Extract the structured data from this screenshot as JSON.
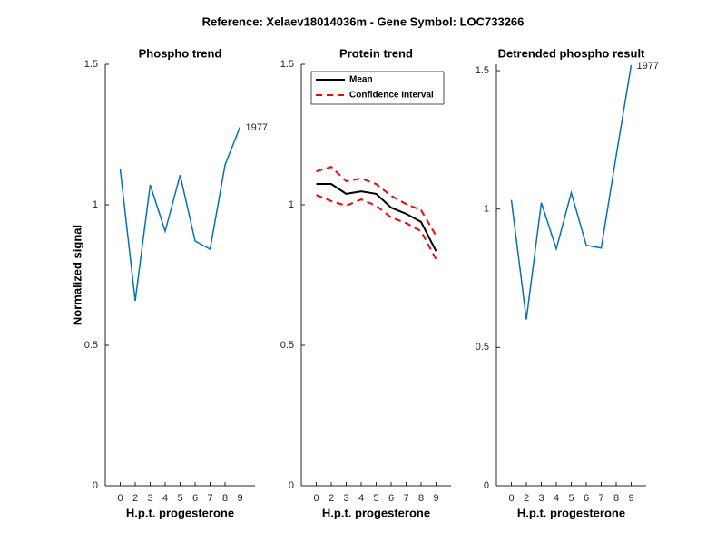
{
  "title": "Reference:  Xelaev18014036m - Gene Symbol:  LOC733266",
  "chart_data": [
    {
      "type": "line",
      "title": "Phospho trend",
      "x_label": "H.p.t. progesterone",
      "y_label": "Normalized signal",
      "categories": [
        "0",
        "2",
        "3",
        "4",
        "5",
        "6",
        "7",
        "8",
        "9"
      ],
      "series": [
        {
          "color": "#0072bd",
          "values": [
            1.126,
            0.658,
            1.071,
            0.906,
            1.106,
            0.871,
            0.842,
            1.142,
            1.277
          ]
        }
      ],
      "annotation": "1977",
      "ylim": [
        0,
        1.5
      ],
      "yticks": [
        0,
        0.5,
        1,
        1.5
      ]
    },
    {
      "type": "line",
      "title": "Protein trend",
      "x_label": "H.p.t. progesterone",
      "categories": [
        "0",
        "2",
        "3",
        "4",
        "5",
        "6",
        "7",
        "8",
        "9"
      ],
      "series": [
        {
          "name": "Mean",
          "color": "#000000",
          "values": [
            1.074,
            1.074,
            1.039,
            1.048,
            1.039,
            0.99,
            0.968,
            0.939,
            0.835
          ]
        },
        {
          "name": "Confidence Interval",
          "color": "#ff0000",
          "dashed": true,
          "upper": [
            1.119,
            1.135,
            1.084,
            1.094,
            1.074,
            1.032,
            1.003,
            0.981,
            0.89
          ],
          "lower": [
            1.035,
            1.013,
            0.997,
            1.019,
            0.997,
            0.955,
            0.935,
            0.906,
            0.806
          ]
        }
      ],
      "legend": "northwest",
      "ylim": [
        0,
        1.5
      ],
      "yticks": [
        0,
        0.5,
        1,
        1.5
      ]
    },
    {
      "type": "line",
      "title": "Detrended phospho result",
      "x_label": "H.p.t. progesterone",
      "categories": [
        "0",
        "2",
        "3",
        "4",
        "5",
        "6",
        "7",
        "8",
        "9"
      ],
      "series": [
        {
          "color": "#0072bd",
          "values": [
            1.033,
            0.601,
            1.023,
            0.856,
            1.059,
            0.869,
            0.859,
            1.193,
            1.52
          ]
        }
      ],
      "annotation": "1977",
      "ylim": [
        0,
        1.523
      ],
      "yticks": [
        0,
        0.5,
        1,
        1.5
      ]
    }
  ]
}
